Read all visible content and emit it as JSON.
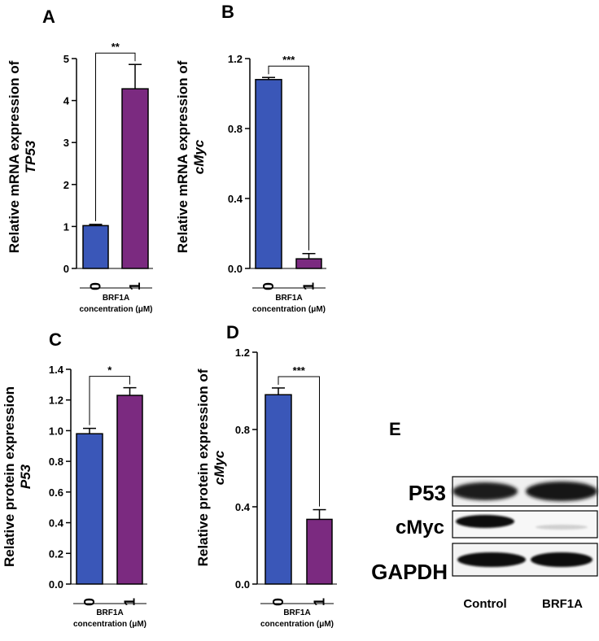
{
  "colors": {
    "blue": "#3a57b8",
    "purple": "#7b2a80"
  },
  "chart_data": [
    {
      "panel": "A",
      "type": "bar",
      "categories": [
        "0",
        "1"
      ],
      "values": [
        1.02,
        4.28
      ],
      "errors": [
        0.03,
        0.58
      ],
      "colors": [
        "#3a57b8",
        "#7b2a80"
      ],
      "ylim": [
        0,
        5
      ],
      "yticks": [
        "0",
        "1",
        "2",
        "3",
        "4",
        "5"
      ],
      "ylabel_line1": "Relative mRNA expression of",
      "ylabel_line2": "TP53",
      "xgroup_line1": "BRF1A",
      "xgroup_line2": "concentration (μM)",
      "significance": "**"
    },
    {
      "panel": "B",
      "type": "bar",
      "categories": [
        "0",
        "1"
      ],
      "values": [
        1.08,
        0.055
      ],
      "errors": [
        0.012,
        0.03
      ],
      "colors": [
        "#3a57b8",
        "#7b2a80"
      ],
      "ylim": [
        0,
        1.2
      ],
      "yticks": [
        "0.0",
        "0.4",
        "0.8",
        "1.2"
      ],
      "ylabel_line1": "Relative mRNA expression of",
      "ylabel_line2": "cMyc",
      "xgroup_line1": "BRF1A",
      "xgroup_line2": "concentration (μM)",
      "significance": "***"
    },
    {
      "panel": "C",
      "type": "bar",
      "categories": [
        "0",
        "1"
      ],
      "values": [
        0.98,
        1.23
      ],
      "errors": [
        0.035,
        0.05
      ],
      "colors": [
        "#3a57b8",
        "#7b2a80"
      ],
      "ylim": [
        0,
        1.4
      ],
      "yticks": [
        "0.0",
        "0.2",
        "0.4",
        "0.6",
        "0.8",
        "1.0",
        "1.2",
        "1.4"
      ],
      "ylabel_line1": "Relative protein expression",
      "ylabel_line2": "P53",
      "xgroup_line1": "BRF1A",
      "xgroup_line2": "concentration (μM)",
      "significance": "*"
    },
    {
      "panel": "D",
      "type": "bar",
      "categories": [
        "0",
        "1"
      ],
      "values": [
        0.98,
        0.335
      ],
      "errors": [
        0.035,
        0.05
      ],
      "colors": [
        "#3a57b8",
        "#7b2a80"
      ],
      "ylim": [
        0,
        1.2
      ],
      "yticks": [
        "0.0",
        "0.4",
        "0.8",
        "1.2"
      ],
      "ylabel_line1": "Relative protein expression of",
      "ylabel_line2": "cMyc",
      "xgroup_line1": "BRF1A",
      "xgroup_line2": "concentration (μM)",
      "significance": "***"
    }
  ],
  "western_blot": {
    "panel": "E",
    "rows": [
      "P53",
      "cMyc",
      "GAPDH"
    ],
    "lanes": [
      "Control",
      "BRF1A"
    ]
  }
}
